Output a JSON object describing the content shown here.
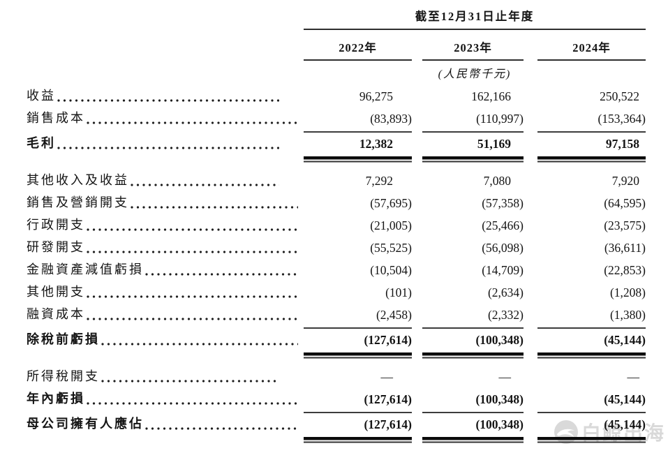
{
  "table": {
    "period_header": "截至12月31日止年度",
    "unit_note": "(人民幣千元)",
    "columns": [
      "2022年",
      "2023年",
      "2024年"
    ],
    "rows": [
      {
        "label": "收益",
        "values": [
          "96,275",
          "162,166",
          "250,522"
        ],
        "bold": false,
        "rule_below": "none",
        "gap_after": 0
      },
      {
        "label": "銷售成本",
        "values": [
          "(83,893)",
          "(110,997)",
          "(153,364)"
        ],
        "bold": false,
        "rule_below": "single",
        "gap_after": 0
      },
      {
        "label": "毛利",
        "values": [
          "12,382",
          "51,169",
          "97,158"
        ],
        "bold": true,
        "rule_below": "double",
        "gap_after": 10
      },
      {
        "label": "其他收入及收益",
        "values": [
          "7,292",
          "7,080",
          "7,920"
        ],
        "bold": false,
        "rule_below": "none",
        "gap_after": 0
      },
      {
        "label": "銷售及營銷開支",
        "values": [
          "(57,695)",
          "(57,358)",
          "(64,595)"
        ],
        "bold": false,
        "rule_below": "none",
        "gap_after": 0
      },
      {
        "label": "行政開支",
        "values": [
          "(21,005)",
          "(25,466)",
          "(23,575)"
        ],
        "bold": false,
        "rule_below": "none",
        "gap_after": 0
      },
      {
        "label": "研發開支",
        "values": [
          "(55,525)",
          "(56,098)",
          "(36,611)"
        ],
        "bold": false,
        "rule_below": "none",
        "gap_after": 0
      },
      {
        "label": "金融資產減值虧損",
        "values": [
          "(10,504)",
          "(14,709)",
          "(22,853)"
        ],
        "bold": false,
        "rule_below": "none",
        "gap_after": 0
      },
      {
        "label": "其他開支",
        "values": [
          "(101)",
          "(2,634)",
          "(1,208)"
        ],
        "bold": false,
        "rule_below": "none",
        "gap_after": 0
      },
      {
        "label": "融資成本",
        "values": [
          "(2,458)",
          "(2,332)",
          "(1,380)"
        ],
        "bold": false,
        "rule_below": "single",
        "gap_after": 0
      },
      {
        "label": "除稅前虧損",
        "values": [
          "(127,614)",
          "(100,348)",
          "(45,144)"
        ],
        "bold": true,
        "rule_below": "double",
        "gap_after": 10
      },
      {
        "label": "所得稅開支",
        "values": [
          "—",
          "—",
          "—"
        ],
        "bold": false,
        "rule_below": "none",
        "gap_after": 0
      },
      {
        "label": "年內虧損",
        "values": [
          "(127,614)",
          "(100,348)",
          "(45,144)"
        ],
        "bold": true,
        "rule_below": "single",
        "gap_after": 0
      },
      {
        "label": "母公司擁有人應佔",
        "values": [
          "(127,614)",
          "(100,348)",
          "(45,144)"
        ],
        "bold": true,
        "rule_below": "double",
        "gap_after": 0
      }
    ]
  },
  "watermark": {
    "text": "白鲸出海",
    "icon": "whale-logo",
    "color": "#d9d9d9"
  }
}
